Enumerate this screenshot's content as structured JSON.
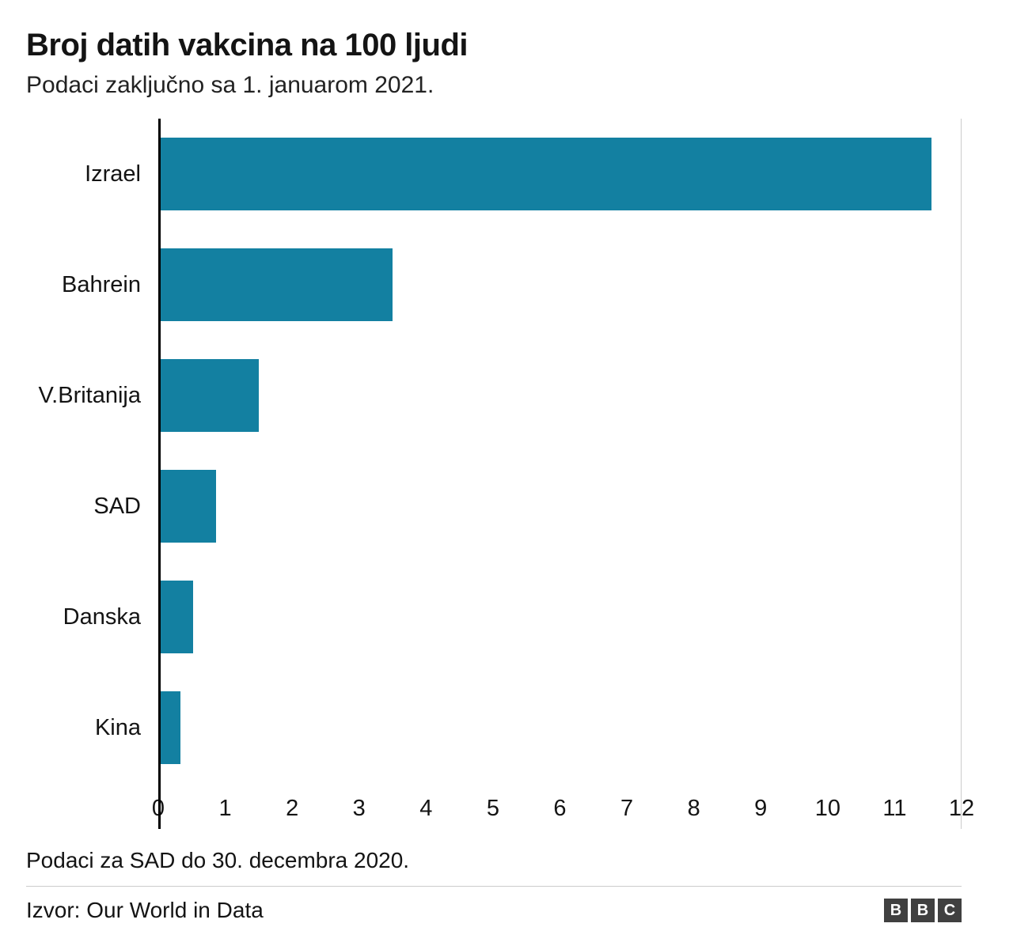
{
  "header": {
    "title": "Broj datih vakcina na 100 ljudi",
    "subtitle": "Podaci zaključno sa 1. januarom 2021."
  },
  "chart_data": {
    "type": "bar",
    "orientation": "horizontal",
    "title": "Broj datih vakcina na 100 ljudi",
    "subtitle": "Podaci zaključno sa 1. januarom 2021.",
    "categories": [
      "Izrael",
      "Bahrein",
      "V.Britanija",
      "SAD",
      "Danska",
      "Kina"
    ],
    "values": [
      11.55,
      3.5,
      1.5,
      0.86,
      0.52,
      0.33
    ],
    "xlabel": "",
    "ylabel": "",
    "xlim": [
      0,
      12
    ],
    "ticks": [
      0,
      1,
      2,
      3,
      4,
      5,
      6,
      7,
      8,
      9,
      10,
      11,
      12
    ],
    "bar_color": "#1380A1",
    "axis_color": "#000000",
    "gridline": "single light-gray line at x=12, right edge",
    "legend": "none"
  },
  "footer": {
    "footnote": "Podaci za SAD do 30. decembra 2020.",
    "source": "Izvor: Our World in Data",
    "logo_letters": [
      "B",
      "B",
      "C"
    ]
  }
}
